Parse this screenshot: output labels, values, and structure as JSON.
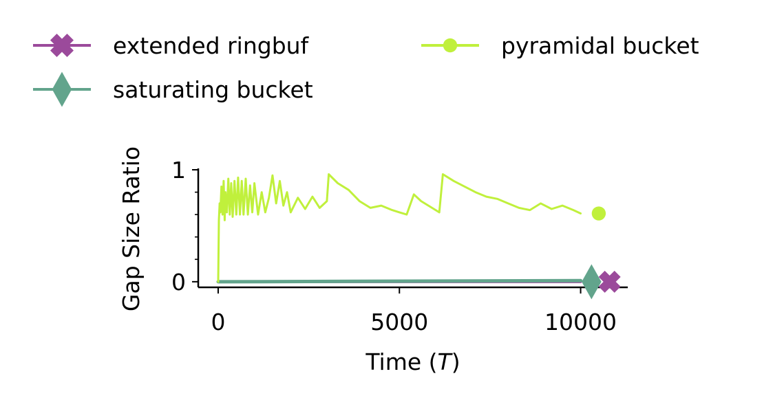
{
  "chart_data": {
    "type": "line",
    "title": "",
    "xlabel": "Time (T)",
    "xlabel_parts": [
      "Time (",
      "T",
      ")"
    ],
    "ylabel": "Gap Size Ratio",
    "xlim": [
      -550,
      11300
    ],
    "ylim": [
      -0.05,
      1.0
    ],
    "xticks": [
      0,
      5000,
      10000
    ],
    "xtick_labels": [
      "0",
      "5000",
      "10000"
    ],
    "yticks": [
      0,
      1
    ],
    "ytick_labels": [
      "0",
      "1"
    ],
    "grid": false,
    "legend_position": "top",
    "series": [
      {
        "name": "extended ringbuf",
        "color": "#9b4a9b",
        "marker": "x",
        "x": [
          0,
          10000
        ],
        "y": [
          0.0,
          0.0
        ],
        "end_marker": {
          "x": 10800,
          "y": 0.0
        }
      },
      {
        "name": "saturating bucket",
        "color": "#62a48c",
        "marker": "diamond",
        "x": [
          0,
          10000
        ],
        "y": [
          0.0,
          0.01
        ],
        "end_marker": {
          "x": 10300,
          "y": 0.0
        }
      },
      {
        "name": "pyramidal bucket",
        "color": "#c0f03c",
        "marker": "circle",
        "x": [
          0,
          20,
          40,
          60,
          90,
          120,
          150,
          180,
          200,
          240,
          280,
          320,
          360,
          400,
          450,
          500,
          550,
          600,
          650,
          700,
          760,
          820,
          880,
          940,
          1000,
          1100,
          1200,
          1300,
          1400,
          1500,
          1600,
          1700,
          1800,
          1900,
          2000,
          2200,
          2400,
          2600,
          2800,
          3000,
          3050,
          3300,
          3600,
          3900,
          4200,
          4500,
          4800,
          5000,
          5200,
          5400,
          5600,
          5800,
          6000,
          6100,
          6200,
          6500,
          6800,
          7100,
          7400,
          7700,
          8000,
          8300,
          8600,
          8900,
          9200,
          9500,
          9800,
          10000
        ],
        "y": [
          0.0,
          0.55,
          0.7,
          0.62,
          0.85,
          0.6,
          0.9,
          0.55,
          0.8,
          0.62,
          0.92,
          0.6,
          0.88,
          0.58,
          0.9,
          0.6,
          0.93,
          0.6,
          0.9,
          0.6,
          0.92,
          0.6,
          0.86,
          0.62,
          0.88,
          0.6,
          0.8,
          0.62,
          0.75,
          0.95,
          0.7,
          0.9,
          0.68,
          0.8,
          0.62,
          0.75,
          0.65,
          0.76,
          0.66,
          0.72,
          0.96,
          0.88,
          0.82,
          0.72,
          0.66,
          0.68,
          0.64,
          0.62,
          0.6,
          0.78,
          0.72,
          0.68,
          0.64,
          0.62,
          0.96,
          0.9,
          0.85,
          0.8,
          0.76,
          0.74,
          0.7,
          0.66,
          0.64,
          0.7,
          0.65,
          0.68,
          0.64,
          0.61
        ],
        "end_marker": {
          "x": 10500,
          "y": 0.61
        }
      }
    ]
  }
}
